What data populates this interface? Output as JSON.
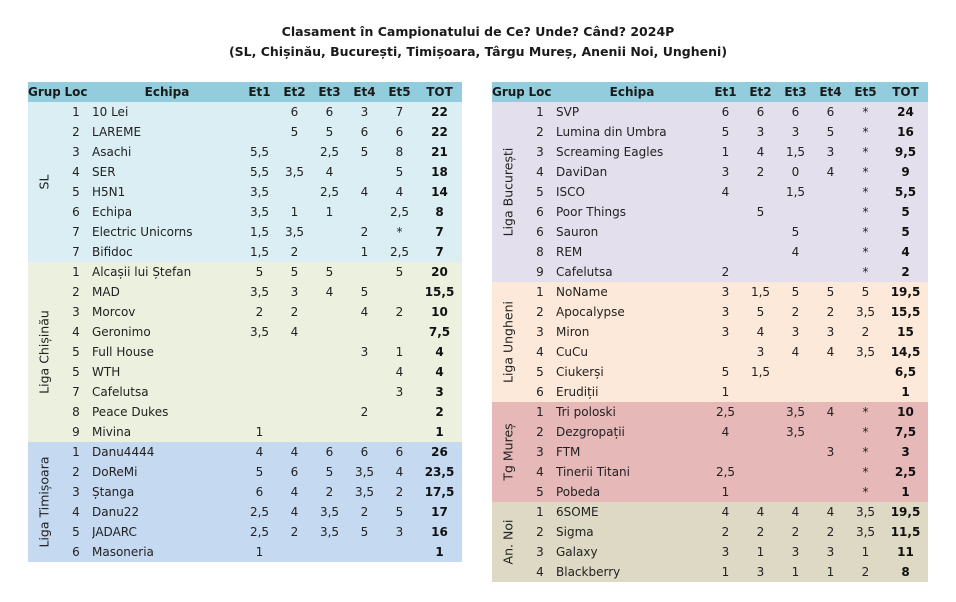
{
  "title_line1": "Clasament în Campionatului de Ce? Unde? Când? 2024P",
  "title_line2": "(SL, Chișinău, București, Timișoara, Târgu Mureș, Anenii Noi, Ungheni)",
  "headers": {
    "grup": "Grup",
    "loc": "Loc",
    "echipa": "Echipa",
    "et1": "Et1",
    "et2": "Et2",
    "et3": "Et3",
    "et4": "Et4",
    "et5": "Et5",
    "tot": "TOT"
  },
  "colors": {
    "header": "#93cddd",
    "SL": "#daeef3",
    "Liga Chișinău": "#ebf1de",
    "Liga Timișoara": "#c5d9f1",
    "Liga București": "#e4dfec",
    "Liga Ungheni": "#fde9d9",
    "Tg Mureș": "#e6b8b7",
    "An. Noi": "#ddd9c4"
  },
  "left_groups": [
    {
      "name": "SL",
      "rows": [
        {
          "loc": "1",
          "team": "10 Lei",
          "et1": "",
          "et2": "6",
          "et3": "6",
          "et4": "3",
          "et5": "7",
          "tot": "22"
        },
        {
          "loc": "2",
          "team": "LAREME",
          "et1": "",
          "et2": "5",
          "et3": "5",
          "et4": "6",
          "et5": "6",
          "tot": "22"
        },
        {
          "loc": "3",
          "team": "Asachi",
          "et1": "5,5",
          "et2": "",
          "et3": "2,5",
          "et4": "5",
          "et5": "8",
          "tot": "21"
        },
        {
          "loc": "4",
          "team": "SER",
          "et1": "5,5",
          "et2": "3,5",
          "et3": "4",
          "et4": "",
          "et5": "5",
          "tot": "18"
        },
        {
          "loc": "5",
          "team": "H5N1",
          "et1": "3,5",
          "et2": "",
          "et3": "2,5",
          "et4": "4",
          "et5": "4",
          "tot": "14"
        },
        {
          "loc": "6",
          "team": "Echipa",
          "et1": "3,5",
          "et2": "1",
          "et3": "1",
          "et4": "",
          "et5": "2,5",
          "tot": "8"
        },
        {
          "loc": "7",
          "team": "Electric Unicorns",
          "et1": "1,5",
          "et2": "3,5",
          "et3": "",
          "et4": "2",
          "et5": "*",
          "tot": "7"
        },
        {
          "loc": "7",
          "team": "Bifidoc",
          "et1": "1,5",
          "et2": "2",
          "et3": "",
          "et4": "1",
          "et5": "2,5",
          "tot": "7"
        }
      ]
    },
    {
      "name": "Liga Chișinău",
      "rows": [
        {
          "loc": "1",
          "team": "Alcașii lui Ștefan",
          "et1": "5",
          "et2": "5",
          "et3": "5",
          "et4": "",
          "et5": "5",
          "tot": "20"
        },
        {
          "loc": "2",
          "team": "MAD",
          "et1": "3,5",
          "et2": "3",
          "et3": "4",
          "et4": "5",
          "et5": "",
          "tot": "15,5"
        },
        {
          "loc": "3",
          "team": "Morcov",
          "et1": "2",
          "et2": "2",
          "et3": "",
          "et4": "4",
          "et5": "2",
          "tot": "10"
        },
        {
          "loc": "4",
          "team": "Geronimo",
          "et1": "3,5",
          "et2": "4",
          "et3": "",
          "et4": "",
          "et5": "",
          "tot": "7,5"
        },
        {
          "loc": "5",
          "team": "Full House",
          "et1": "",
          "et2": "",
          "et3": "",
          "et4": "3",
          "et5": "1",
          "tot": "4"
        },
        {
          "loc": "5",
          "team": "WTH",
          "et1": "",
          "et2": "",
          "et3": "",
          "et4": "",
          "et5": "4",
          "tot": "4"
        },
        {
          "loc": "7",
          "team": "Cafelutsa",
          "et1": "",
          "et2": "",
          "et3": "",
          "et4": "",
          "et5": "3",
          "tot": "3"
        },
        {
          "loc": "8",
          "team": "Peace Dukes",
          "et1": "",
          "et2": "",
          "et3": "",
          "et4": "2",
          "et5": "",
          "tot": "2"
        },
        {
          "loc": "9",
          "team": "Mivina",
          "et1": "1",
          "et2": "",
          "et3": "",
          "et4": "",
          "et5": "",
          "tot": "1"
        }
      ]
    },
    {
      "name": "Liga Timișoara",
      "rows": [
        {
          "loc": "1",
          "team": "Danu4444",
          "et1": "4",
          "et2": "4",
          "et3": "6",
          "et4": "6",
          "et5": "6",
          "tot": "26"
        },
        {
          "loc": "2",
          "team": "DoReMi",
          "et1": "5",
          "et2": "6",
          "et3": "5",
          "et4": "3,5",
          "et5": "4",
          "tot": "23,5"
        },
        {
          "loc": "3",
          "team": "Ștanga",
          "et1": "6",
          "et2": "4",
          "et3": "2",
          "et4": "3,5",
          "et5": "2",
          "tot": "17,5"
        },
        {
          "loc": "4",
          "team": "Danu22",
          "et1": "2,5",
          "et2": "4",
          "et3": "3,5",
          "et4": "2",
          "et5": "5",
          "tot": "17"
        },
        {
          "loc": "5",
          "team": "JADARC",
          "et1": "2,5",
          "et2": "2",
          "et3": "3,5",
          "et4": "5",
          "et5": "3",
          "tot": "16"
        },
        {
          "loc": "6",
          "team": "Masoneria",
          "et1": "1",
          "et2": "",
          "et3": "",
          "et4": "",
          "et5": "",
          "tot": "1"
        }
      ]
    }
  ],
  "right_groups": [
    {
      "name": "Liga București",
      "rows": [
        {
          "loc": "1",
          "team": "SVP",
          "et1": "6",
          "et2": "6",
          "et3": "6",
          "et4": "6",
          "et5": "*",
          "tot": "24"
        },
        {
          "loc": "2",
          "team": "Lumina din Umbra",
          "et1": "5",
          "et2": "3",
          "et3": "3",
          "et4": "5",
          "et5": "*",
          "tot": "16"
        },
        {
          "loc": "3",
          "team": "Screaming Eagles",
          "et1": "1",
          "et2": "4",
          "et3": "1,5",
          "et4": "3",
          "et5": "*",
          "tot": "9,5"
        },
        {
          "loc": "4",
          "team": "DaviDan",
          "et1": "3",
          "et2": "2",
          "et3": "0",
          "et4": "4",
          "et5": "*",
          "tot": "9"
        },
        {
          "loc": "5",
          "team": "ISCO",
          "et1": "4",
          "et2": "",
          "et3": "1,5",
          "et4": "",
          "et5": "*",
          "tot": "5,5"
        },
        {
          "loc": "6",
          "team": "Poor Things",
          "et1": "",
          "et2": "5",
          "et3": "",
          "et4": "",
          "et5": "*",
          "tot": "5"
        },
        {
          "loc": "6",
          "team": "Sauron",
          "et1": "",
          "et2": "",
          "et3": "5",
          "et4": "",
          "et5": "*",
          "tot": "5"
        },
        {
          "loc": "8",
          "team": "REM",
          "et1": "",
          "et2": "",
          "et3": "4",
          "et4": "",
          "et5": "*",
          "tot": "4"
        },
        {
          "loc": "9",
          "team": "Cafelutsa",
          "et1": "2",
          "et2": "",
          "et3": "",
          "et4": "",
          "et5": "*",
          "tot": "2"
        }
      ]
    },
    {
      "name": "Liga Ungheni",
      "rows": [
        {
          "loc": "1",
          "team": "NoName",
          "et1": "3",
          "et2": "1,5",
          "et3": "5",
          "et4": "5",
          "et5": "5",
          "tot": "19,5"
        },
        {
          "loc": "2",
          "team": "Apocalypse",
          "et1": "3",
          "et2": "5",
          "et3": "2",
          "et4": "2",
          "et5": "3,5",
          "tot": "15,5"
        },
        {
          "loc": "3",
          "team": "Miron",
          "et1": "3",
          "et2": "4",
          "et3": "3",
          "et4": "3",
          "et5": "2",
          "tot": "15"
        },
        {
          "loc": "4",
          "team": "CuCu",
          "et1": "",
          "et2": "3",
          "et3": "4",
          "et4": "4",
          "et5": "3,5",
          "tot": "14,5"
        },
        {
          "loc": "5",
          "team": "Ciukerși",
          "et1": "5",
          "et2": "1,5",
          "et3": "",
          "et4": "",
          "et5": "",
          "tot": "6,5"
        },
        {
          "loc": "6",
          "team": "Erudiții",
          "et1": "1",
          "et2": "",
          "et3": "",
          "et4": "",
          "et5": "",
          "tot": "1"
        }
      ]
    },
    {
      "name": "Tg Mureș",
      "rows": [
        {
          "loc": "1",
          "team": "Tri poloski",
          "et1": "2,5",
          "et2": "",
          "et3": "3,5",
          "et4": "4",
          "et5": "*",
          "tot": "10"
        },
        {
          "loc": "2",
          "team": "Dezgropații",
          "et1": "4",
          "et2": "",
          "et3": "3,5",
          "et4": "",
          "et5": "*",
          "tot": "7,5"
        },
        {
          "loc": "3",
          "team": "FTM",
          "et1": "",
          "et2": "",
          "et3": "",
          "et4": "3",
          "et5": "*",
          "tot": "3"
        },
        {
          "loc": "4",
          "team": "Tinerii Titani",
          "et1": "2,5",
          "et2": "",
          "et3": "",
          "et4": "",
          "et5": "*",
          "tot": "2,5"
        },
        {
          "loc": "5",
          "team": "Pobeda",
          "et1": "1",
          "et2": "",
          "et3": "",
          "et4": "",
          "et5": "*",
          "tot": "1"
        }
      ]
    },
    {
      "name": "An. Noi",
      "rows": [
        {
          "loc": "1",
          "team": "6SOME",
          "et1": "4",
          "et2": "4",
          "et3": "4",
          "et4": "4",
          "et5": "3,5",
          "tot": "19,5"
        },
        {
          "loc": "2",
          "team": "Sigma",
          "et1": "2",
          "et2": "2",
          "et3": "2",
          "et4": "2",
          "et5": "3,5",
          "tot": "11,5"
        },
        {
          "loc": "3",
          "team": "Galaxy",
          "et1": "3",
          "et2": "1",
          "et3": "3",
          "et4": "3",
          "et5": "1",
          "tot": "11"
        },
        {
          "loc": "4",
          "team": "Blackberry",
          "et1": "1",
          "et2": "3",
          "et3": "1",
          "et4": "1",
          "et5": "2",
          "tot": "8"
        }
      ]
    }
  ]
}
